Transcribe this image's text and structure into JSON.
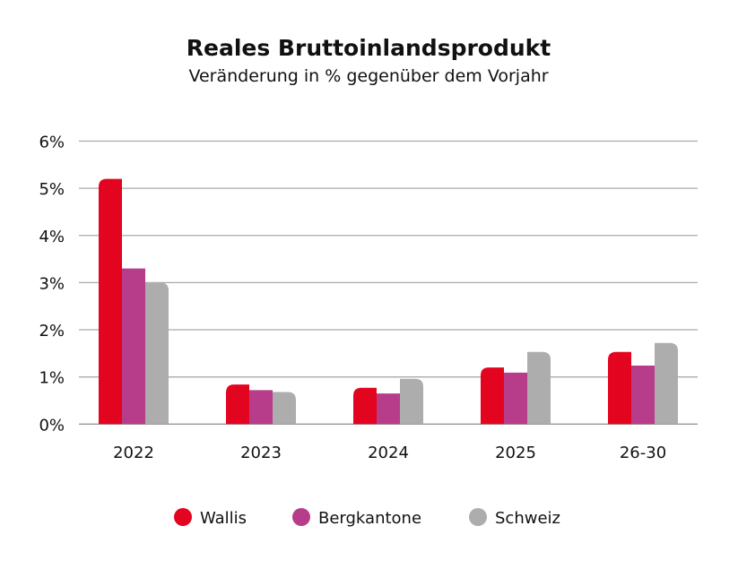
{
  "chart_data": {
    "type": "bar",
    "title": "Reales Bruttoinlandsprodukt",
    "subtitle": "Veränderung in % gegenüber dem Vorjahr",
    "categories": [
      "2022",
      "2023",
      "2024",
      "2025",
      "26-30"
    ],
    "series": [
      {
        "name": "Wallis",
        "color": "#e3051f",
        "values": [
          5.2,
          0.84,
          0.77,
          1.2,
          1.53
        ]
      },
      {
        "name": "Bergkantone",
        "color": "#b73c8a",
        "values": [
          3.3,
          0.72,
          0.65,
          1.09,
          1.24
        ]
      },
      {
        "name": "Schweiz",
        "color": "#adadad",
        "values": [
          3.0,
          0.68,
          0.96,
          1.53,
          1.72
        ]
      }
    ],
    "ylim": [
      0,
      6
    ],
    "yticks": [
      "0%",
      "1%",
      "2%",
      "3%",
      "4%",
      "5%",
      "6%"
    ],
    "grid": true,
    "legend_position": "bottom"
  }
}
